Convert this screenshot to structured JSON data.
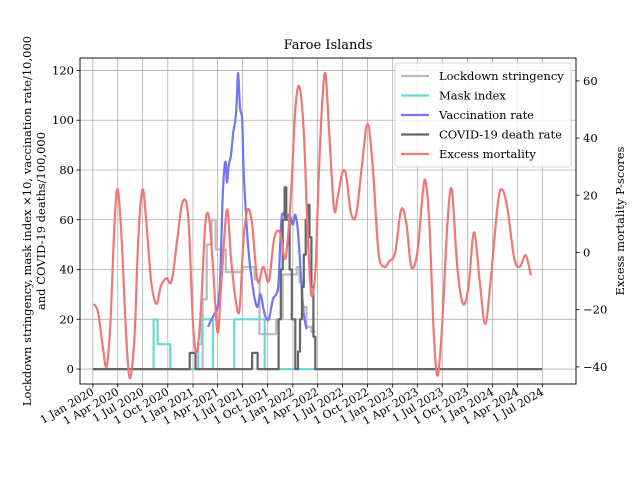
{
  "chart_data": {
    "type": "line",
    "title": "Faroe Islands",
    "ylabel_left_line1": "Lockdown stringency, mask index ×10, vaccination rate/10,000",
    "ylabel_left_line2": "and COVID-19 deaths/100,000",
    "ylabel_right": "Excess mortality P-scores",
    "x_ticks": [
      "1 Jan 2020",
      "1 Apr 2020",
      "1 Jul 2020",
      "1 Oct 2020",
      "1 Jan 2021",
      "1 Apr 2021",
      "1 Jul 2021",
      "1 Oct 2021",
      "1 Jan 2022",
      "1 Apr 2022",
      "1 Jul 2022",
      "1 Oct 2022",
      "1 Jan 2023",
      "1 Apr 2023",
      "1 Jul 2023",
      "1 Oct 2023",
      "1 Jan 2024",
      "1 Apr 2024",
      "1 Jul 2024"
    ],
    "y_left_ticks": [
      0,
      20,
      40,
      60,
      80,
      100,
      120
    ],
    "y_left_lim": [
      -6,
      125
    ],
    "y_right_ticks": [
      -40,
      -20,
      0,
      20,
      40,
      60
    ],
    "y_right_lim": [
      -46,
      68
    ],
    "grid": true,
    "legend_position": "top-right",
    "series": [
      {
        "name": "Lockdown stringency",
        "color": "#bbbbbb",
        "axis": "left",
        "step": true,
        "points": [
          [
            "2020-01-01",
            0
          ],
          [
            "2020-01-01",
            0
          ],
          [
            "2021-02-05",
            0
          ],
          [
            "2021-02-05",
            28
          ],
          [
            "2021-02-20",
            28
          ],
          [
            "2021-02-20",
            50
          ],
          [
            "2021-03-10",
            50
          ],
          [
            "2021-03-10",
            60
          ],
          [
            "2021-03-25",
            60
          ],
          [
            "2021-03-25",
            48
          ],
          [
            "2021-05-01",
            48
          ],
          [
            "2021-05-01",
            39
          ],
          [
            "2021-07-01",
            39
          ],
          [
            "2021-07-01",
            41
          ],
          [
            "2021-08-15",
            41
          ],
          [
            "2021-08-15",
            36
          ],
          [
            "2021-09-01",
            36
          ],
          [
            "2021-09-01",
            14
          ],
          [
            "2021-11-01",
            14
          ],
          [
            "2021-11-01",
            20
          ],
          [
            "2021-11-25",
            20
          ],
          [
            "2021-11-25",
            38
          ],
          [
            "2022-01-15",
            38
          ],
          [
            "2022-01-15",
            41
          ],
          [
            "2022-01-25",
            41
          ],
          [
            "2022-01-25",
            35
          ],
          [
            "2022-02-05",
            35
          ],
          [
            "2022-02-05",
            25
          ],
          [
            "2022-02-20",
            25
          ],
          [
            "2022-02-20",
            17
          ],
          [
            "2022-03-10",
            17
          ],
          [
            "2022-03-10",
            15
          ],
          [
            "2022-03-25",
            15
          ]
        ]
      },
      {
        "name": "Mask index",
        "color": "#6dd7d2",
        "axis": "left",
        "step": true,
        "points": [
          [
            "2020-01-01",
            0
          ],
          [
            "2020-08-10",
            0
          ],
          [
            "2020-08-10",
            20
          ],
          [
            "2020-08-25",
            20
          ],
          [
            "2020-08-25",
            10
          ],
          [
            "2020-10-10",
            10
          ],
          [
            "2020-10-10",
            0
          ],
          [
            "2021-01-20",
            0
          ],
          [
            "2021-01-20",
            10
          ],
          [
            "2021-02-01",
            10
          ],
          [
            "2021-02-01",
            20
          ],
          [
            "2021-03-15",
            20
          ],
          [
            "2021-03-15",
            0
          ],
          [
            "2021-06-01",
            0
          ],
          [
            "2021-06-01",
            20
          ],
          [
            "2021-09-20",
            20
          ],
          [
            "2021-09-20",
            0
          ],
          [
            "2023-01-01",
            0
          ]
        ]
      },
      {
        "name": "Vaccination rate",
        "color": "#7474f4",
        "axis": "left",
        "step": false,
        "points": [
          [
            "2021-02-25",
            17
          ],
          [
            "2021-03-10",
            20
          ],
          [
            "2021-03-20",
            22
          ],
          [
            "2021-04-01",
            25
          ],
          [
            "2021-04-10",
            35
          ],
          [
            "2021-04-18",
            65
          ],
          [
            "2021-04-25",
            80
          ],
          [
            "2021-05-01",
            83
          ],
          [
            "2021-05-05",
            75
          ],
          [
            "2021-05-12",
            82
          ],
          [
            "2021-05-20",
            86
          ],
          [
            "2021-05-28",
            95
          ],
          [
            "2021-06-05",
            100
          ],
          [
            "2021-06-10",
            108
          ],
          [
            "2021-06-15",
            119
          ],
          [
            "2021-06-22",
            105
          ],
          [
            "2021-06-30",
            100
          ],
          [
            "2021-07-05",
            80
          ],
          [
            "2021-07-15",
            60
          ],
          [
            "2021-07-25",
            45
          ],
          [
            "2021-08-05",
            35
          ],
          [
            "2021-08-15",
            28
          ],
          [
            "2021-08-25",
            25
          ],
          [
            "2021-09-05",
            30
          ],
          [
            "2021-09-20",
            22
          ],
          [
            "2021-10-05",
            20
          ],
          [
            "2021-10-20",
            28
          ],
          [
            "2021-11-01",
            30
          ],
          [
            "2021-11-10",
            35
          ],
          [
            "2021-11-20",
            60
          ],
          [
            "2021-12-01",
            62
          ],
          [
            "2021-12-10",
            61
          ],
          [
            "2021-12-20",
            62
          ],
          [
            "2022-01-01",
            58
          ],
          [
            "2022-01-10",
            62
          ],
          [
            "2022-01-20",
            55
          ],
          [
            "2022-02-01",
            35
          ],
          [
            "2022-02-10",
            22
          ],
          [
            "2022-02-20",
            16
          ]
        ]
      },
      {
        "name": "COVID-19 death rate",
        "color": "#666666",
        "axis": "left",
        "step": true,
        "points": [
          [
            "2020-01-01",
            0
          ],
          [
            "2020-12-20",
            0
          ],
          [
            "2020-12-20",
            6.5
          ],
          [
            "2021-01-10",
            6.5
          ],
          [
            "2021-01-10",
            0
          ],
          [
            "2021-08-05",
            0
          ],
          [
            "2021-08-05",
            6.5
          ],
          [
            "2021-08-25",
            6.5
          ],
          [
            "2021-08-25",
            0
          ],
          [
            "2021-11-10",
            0
          ],
          [
            "2021-11-10",
            20
          ],
          [
            "2021-11-18",
            20
          ],
          [
            "2021-11-18",
            40
          ],
          [
            "2021-11-25",
            40
          ],
          [
            "2021-11-25",
            60
          ],
          [
            "2021-12-02",
            60
          ],
          [
            "2021-12-02",
            73
          ],
          [
            "2021-12-08",
            73
          ],
          [
            "2021-12-08",
            60
          ],
          [
            "2021-12-20",
            60
          ],
          [
            "2021-12-20",
            40
          ],
          [
            "2021-12-28",
            40
          ],
          [
            "2021-12-28",
            20
          ],
          [
            "2022-01-10",
            20
          ],
          [
            "2022-01-10",
            0
          ],
          [
            "2022-01-20",
            0
          ],
          [
            "2022-01-20",
            7
          ],
          [
            "2022-01-27",
            7
          ],
          [
            "2022-01-27",
            20
          ],
          [
            "2022-02-03",
            20
          ],
          [
            "2022-02-03",
            33
          ],
          [
            "2022-02-10",
            33
          ],
          [
            "2022-02-10",
            46
          ],
          [
            "2022-02-17",
            46
          ],
          [
            "2022-02-17",
            60
          ],
          [
            "2022-02-24",
            60
          ],
          [
            "2022-02-24",
            66
          ],
          [
            "2022-03-03",
            66
          ],
          [
            "2022-03-03",
            53
          ],
          [
            "2022-03-10",
            53
          ],
          [
            "2022-03-10",
            33
          ],
          [
            "2022-03-17",
            33
          ],
          [
            "2022-03-17",
            13
          ],
          [
            "2022-03-24",
            13
          ],
          [
            "2022-03-24",
            0
          ],
          [
            "2024-06-30",
            0
          ]
        ]
      },
      {
        "name": "Excess mortality",
        "color": "#f17676",
        "axis": "right",
        "step": false,
        "points": [
          [
            "2020-01-05",
            -18
          ],
          [
            "2020-01-20",
            -21
          ],
          [
            "2020-02-05",
            -32
          ],
          [
            "2020-02-20",
            -40
          ],
          [
            "2020-03-05",
            -25
          ],
          [
            "2020-03-20",
            10
          ],
          [
            "2020-04-01",
            22
          ],
          [
            "2020-04-15",
            5
          ],
          [
            "2020-05-01",
            -28
          ],
          [
            "2020-05-15",
            -44
          ],
          [
            "2020-06-01",
            -30
          ],
          [
            "2020-06-15",
            5
          ],
          [
            "2020-07-01",
            22
          ],
          [
            "2020-07-15",
            10
          ],
          [
            "2020-08-01",
            -10
          ],
          [
            "2020-08-20",
            -18
          ],
          [
            "2020-09-05",
            -12
          ],
          [
            "2020-09-25",
            -9
          ],
          [
            "2020-10-15",
            -10
          ],
          [
            "2020-11-05",
            5
          ],
          [
            "2020-11-25",
            18
          ],
          [
            "2020-12-15",
            12
          ],
          [
            "2021-01-01",
            -25
          ],
          [
            "2021-01-15",
            -35
          ],
          [
            "2021-01-30",
            -20
          ],
          [
            "2021-02-15",
            10
          ],
          [
            "2021-03-01",
            12
          ],
          [
            "2021-03-15",
            -5
          ],
          [
            "2021-04-01",
            -28
          ],
          [
            "2021-04-15",
            -10
          ],
          [
            "2021-05-05",
            15
          ],
          [
            "2021-05-20",
            -2
          ],
          [
            "2021-06-05",
            -16
          ],
          [
            "2021-06-20",
            -20
          ],
          [
            "2021-07-05",
            5
          ],
          [
            "2021-07-20",
            15
          ],
          [
            "2021-08-05",
            10
          ],
          [
            "2021-08-25",
            -10
          ],
          [
            "2021-09-15",
            -5
          ],
          [
            "2021-10-05",
            -10
          ],
          [
            "2021-10-25",
            5
          ],
          [
            "2021-11-15",
            7
          ],
          [
            "2021-12-05",
            -2
          ],
          [
            "2021-12-25",
            20
          ],
          [
            "2022-01-10",
            50
          ],
          [
            "2022-01-25",
            58
          ],
          [
            "2022-02-10",
            42
          ],
          [
            "2022-02-25",
            5
          ],
          [
            "2022-03-10",
            -15
          ],
          [
            "2022-03-25",
            -5
          ],
          [
            "2022-04-05",
            25
          ],
          [
            "2022-04-20",
            55
          ],
          [
            "2022-05-01",
            62
          ],
          [
            "2022-05-15",
            40
          ],
          [
            "2022-06-01",
            15
          ],
          [
            "2022-06-15",
            20
          ],
          [
            "2022-07-01",
            28
          ],
          [
            "2022-07-15",
            27
          ],
          [
            "2022-08-01",
            14
          ],
          [
            "2022-08-20",
            13
          ],
          [
            "2022-09-10",
            30
          ],
          [
            "2022-10-01",
            45
          ],
          [
            "2022-10-20",
            30
          ],
          [
            "2022-11-10",
            0
          ],
          [
            "2022-12-01",
            -5
          ],
          [
            "2022-12-20",
            -3
          ],
          [
            "2023-01-10",
            0
          ],
          [
            "2023-02-01",
            15
          ],
          [
            "2023-02-20",
            10
          ],
          [
            "2023-03-10",
            -5
          ],
          [
            "2023-04-01",
            0
          ],
          [
            "2023-04-20",
            20
          ],
          [
            "2023-05-01",
            25
          ],
          [
            "2023-05-15",
            10
          ],
          [
            "2023-06-01",
            -30
          ],
          [
            "2023-06-15",
            -43
          ],
          [
            "2023-07-01",
            -25
          ],
          [
            "2023-07-20",
            10
          ],
          [
            "2023-08-05",
            22
          ],
          [
            "2023-08-25",
            -5
          ],
          [
            "2023-09-15",
            -18
          ],
          [
            "2023-10-05",
            -12
          ],
          [
            "2023-10-25",
            7
          ],
          [
            "2023-11-15",
            -10
          ],
          [
            "2023-12-05",
            -25
          ],
          [
            "2023-12-25",
            -10
          ],
          [
            "2024-01-20",
            17
          ],
          [
            "2024-02-05",
            22
          ],
          [
            "2024-02-25",
            15
          ],
          [
            "2024-03-20",
            -2
          ],
          [
            "2024-04-10",
            -5
          ],
          [
            "2024-05-01",
            -1
          ],
          [
            "2024-05-20",
            -8
          ]
        ]
      }
    ]
  }
}
